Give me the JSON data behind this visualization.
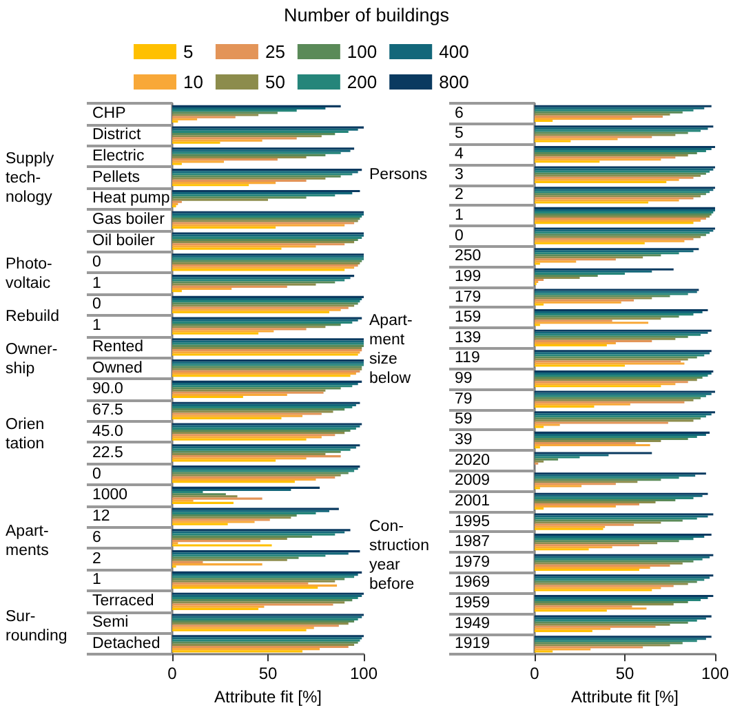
{
  "chart_data": [
    {
      "type": "bar",
      "orientation": "horizontal",
      "legend": "top",
      "legend_title": "Number of buildings",
      "xlabel": "Attribute fit [%]",
      "xlim": [
        0,
        100
      ],
      "xticks": [
        0,
        50,
        100
      ],
      "annotations": [
        "Supply\ntech-\nnology",
        "Photo-\nvoltaic",
        "Rebuild",
        "Owner-\nship",
        "Orien\ntation",
        "Apart-\nments",
        "Sur-\nrounding"
      ],
      "categories": [
        "CHP",
        "District",
        "Electric",
        "Pellets",
        "Heat pump",
        "Gas boiler",
        "Oil boiler",
        "0",
        "1",
        "0",
        "1",
        "Rented",
        "Owned",
        "90.0",
        "67.5",
        "45.0",
        "22.5",
        "0",
        "1000",
        "12",
        "6",
        "2",
        "1",
        "Terraced",
        "Semi",
        "Detached"
      ],
      "series": [
        {
          "name": "5",
          "color": "#ffc000",
          "values": [
            3,
            25,
            5,
            40,
            2,
            54,
            57,
            90,
            5,
            82,
            45,
            97,
            93,
            37,
            57,
            70,
            54,
            64,
            32,
            29,
            52,
            2,
            76,
            45,
            70,
            68
          ]
        },
        {
          "name": "10",
          "color": "#f8a838",
          "values": [
            13,
            47,
            27,
            54,
            3,
            90,
            75,
            95,
            31,
            88,
            53,
            98,
            96,
            60,
            68,
            78,
            70,
            75,
            11,
            43,
            3,
            47,
            86,
            48,
            74,
            77
          ]
        },
        {
          "name": "25",
          "color": "#e39458",
          "values": [
            33,
            65,
            55,
            70,
            5,
            95,
            90,
            97,
            60,
            92,
            70,
            99,
            98,
            79,
            78,
            85,
            88,
            85,
            47,
            51,
            46,
            16,
            71,
            84,
            87,
            92
          ]
        },
        {
          "name": "50",
          "color": "#8c8c4c",
          "values": [
            45,
            78,
            70,
            80,
            50,
            97,
            95,
            98,
            75,
            95,
            80,
            99,
            99,
            80,
            84,
            90,
            80,
            88,
            34,
            62,
            60,
            60,
            85,
            90,
            92,
            95
          ]
        },
        {
          "name": "100",
          "color": "#5a8a58",
          "values": [
            55,
            85,
            80,
            88,
            70,
            98,
            97,
            99,
            85,
            97,
            88,
            100,
            99,
            88,
            90,
            93,
            88,
            92,
            28,
            65,
            73,
            66,
            90,
            94,
            95,
            97
          ]
        },
        {
          "name": "200",
          "color": "#25857a",
          "values": [
            65,
            92,
            88,
            94,
            85,
            99,
            99,
            100,
            90,
            98,
            94,
            100,
            100,
            94,
            94,
            96,
            93,
            95,
            16,
            75,
            85,
            80,
            95,
            97,
            97,
            98
          ]
        },
        {
          "name": "400",
          "color": "#13677a",
          "values": [
            80,
            97,
            93,
            97,
            94,
            100,
            100,
            100,
            93,
            99,
            97,
            100,
            100,
            97,
            96,
            98,
            96,
            97,
            62,
            82,
            90,
            92,
            97,
            99,
            99,
            99
          ]
        },
        {
          "name": "800",
          "color": "#0a3a60",
          "values": [
            88,
            100,
            95,
            99,
            98,
            100,
            100,
            100,
            95,
            100,
            99,
            100,
            100,
            99,
            98,
            99,
            98,
            98,
            77,
            87,
            93,
            98,
            99,
            100,
            100,
            100
          ]
        }
      ]
    },
    {
      "type": "bar",
      "orientation": "horizontal",
      "xlabel": "Attribute fit [%]",
      "xlim": [
        0,
        100
      ],
      "xticks": [
        0,
        50,
        100
      ],
      "annotations": [
        "Persons",
        "Apart-\nment\nsize\nbelow",
        "Con-\nstruction\nyear\nbefore"
      ],
      "categories": [
        "6",
        "5",
        "4",
        "3",
        "2",
        "1",
        "0",
        "250",
        "199",
        "179",
        "159",
        "139",
        "119",
        "99",
        "79",
        "59",
        "39",
        "2020",
        "2009",
        "2001",
        "1995",
        "1987",
        "1979",
        "1969",
        "1959",
        "1949",
        "1919"
      ],
      "series": [
        {
          "color": "#ffc000",
          "values": [
            10,
            20,
            36,
            73,
            63,
            88,
            61,
            3,
            1,
            5,
            3,
            40,
            50,
            70,
            33,
            5,
            3,
            0,
            3,
            5,
            38,
            30,
            58,
            65,
            40,
            32,
            10
          ]
        },
        {
          "color": "#f8a838",
          "values": [
            54,
            46,
            70,
            80,
            80,
            92,
            83,
            23,
            2,
            48,
            63,
            45,
            83,
            78,
            53,
            14,
            64,
            0,
            26,
            45,
            39,
            43,
            64,
            70,
            62,
            42,
            31
          ]
        },
        {
          "color": "#e39458",
          "values": [
            71,
            65,
            78,
            88,
            88,
            95,
            88,
            45,
            5,
            55,
            43,
            65,
            81,
            85,
            83,
            74,
            56,
            2,
            45,
            58,
            55,
            58,
            75,
            77,
            54,
            67,
            60
          ]
        },
        {
          "color": "#8c8c4c",
          "values": [
            75,
            78,
            85,
            92,
            92,
            97,
            92,
            60,
            25,
            65,
            70,
            78,
            85,
            90,
            88,
            88,
            70,
            5,
            57,
            67,
            70,
            68,
            82,
            85,
            77,
            75,
            75
          ]
        },
        {
          "color": "#5a8a58",
          "values": [
            82,
            85,
            90,
            95,
            95,
            98,
            95,
            70,
            35,
            75,
            80,
            85,
            90,
            93,
            92,
            92,
            85,
            13,
            70,
            78,
            82,
            80,
            88,
            90,
            85,
            85,
            82
          ]
        },
        {
          "color": "#25857a",
          "values": [
            88,
            92,
            95,
            97,
            97,
            99,
            97,
            80,
            50,
            85,
            88,
            92,
            94,
            96,
            95,
            95,
            90,
            25,
            80,
            88,
            90,
            88,
            93,
            94,
            92,
            90,
            90
          ]
        },
        {
          "color": "#13677a",
          "values": [
            94,
            96,
            98,
            99,
            99,
            100,
            99,
            88,
            65,
            90,
            93,
            96,
            97,
            98,
            98,
            98,
            95,
            41,
            89,
            93,
            96,
            94,
            97,
            97,
            96,
            95,
            95
          ]
        },
        {
          "color": "#0a3a60",
          "values": [
            98,
            99,
            100,
            100,
            100,
            100,
            100,
            91,
            77,
            91,
            96,
            98,
            98,
            99,
            100,
            100,
            97,
            65,
            95,
            96,
            99,
            98,
            99,
            99,
            99,
            98,
            98
          ]
        }
      ]
    }
  ]
}
